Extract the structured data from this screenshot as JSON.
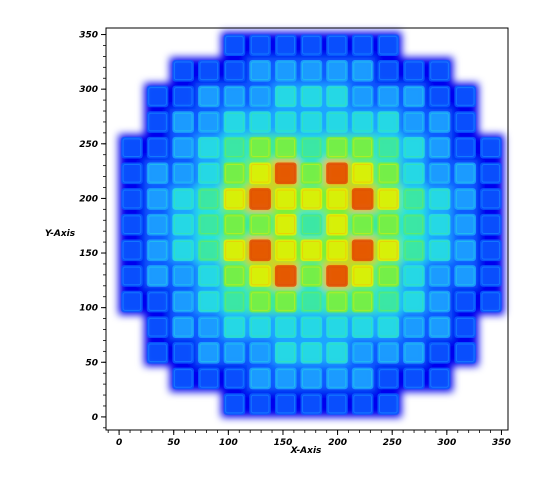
{
  "chart_data": {
    "type": "heatmap",
    "xlabel": "X-Axis",
    "ylabel": "Y-Axis",
    "xlim": [
      -12,
      356
    ],
    "ylim": [
      -12,
      356
    ],
    "xticks": [
      0,
      50,
      100,
      150,
      200,
      250,
      300,
      350
    ],
    "yticks": [
      0,
      50,
      100,
      150,
      200,
      250,
      300,
      350
    ],
    "x_minor_step": 10,
    "y_minor_step": 10,
    "grid": false,
    "colormap": [
      "#0000ee",
      "#0a5cff",
      "#1fa6ff",
      "#27e0e0",
      "#3fe89a",
      "#7ef03a",
      "#e6f000",
      "#ffb000",
      "#e04a00"
    ],
    "core_region_data_units": {
      "x0": 0,
      "x1": 352,
      "y0": 0,
      "y1": 352
    },
    "assembly_grid_size": 15,
    "assembly_levels": [
      [
        0,
        0,
        0,
        0,
        1,
        1,
        1,
        1,
        1,
        1,
        1,
        0,
        0,
        0,
        0
      ],
      [
        0,
        0,
        1,
        1,
        1,
        2,
        2,
        2,
        2,
        2,
        1,
        1,
        1,
        0,
        0
      ],
      [
        0,
        1,
        1,
        2,
        2,
        2,
        3,
        3,
        3,
        2,
        2,
        2,
        1,
        1,
        0
      ],
      [
        0,
        1,
        2,
        2,
        3,
        3,
        3,
        3,
        3,
        3,
        3,
        2,
        2,
        1,
        0
      ],
      [
        1,
        1,
        2,
        3,
        4,
        5,
        5,
        4,
        5,
        5,
        4,
        3,
        2,
        1,
        1
      ],
      [
        1,
        2,
        2,
        3,
        5,
        6,
        8,
        5,
        8,
        6,
        5,
        3,
        2,
        2,
        1
      ],
      [
        1,
        2,
        3,
        4,
        6,
        8,
        6,
        6,
        6,
        8,
        6,
        4,
        3,
        2,
        1
      ],
      [
        1,
        2,
        3,
        4,
        5,
        5,
        6,
        4,
        6,
        5,
        5,
        4,
        3,
        2,
        1
      ],
      [
        1,
        2,
        3,
        4,
        6,
        8,
        6,
        6,
        6,
        8,
        6,
        4,
        3,
        2,
        1
      ],
      [
        1,
        2,
        2,
        3,
        5,
        6,
        8,
        5,
        8,
        6,
        5,
        3,
        2,
        2,
        1
      ],
      [
        1,
        1,
        2,
        3,
        4,
        5,
        5,
        4,
        5,
        5,
        4,
        3,
        2,
        1,
        1
      ],
      [
        0,
        1,
        2,
        2,
        3,
        3,
        3,
        3,
        3,
        3,
        3,
        2,
        2,
        1,
        0
      ],
      [
        0,
        1,
        1,
        2,
        2,
        2,
        3,
        3,
        3,
        2,
        2,
        2,
        1,
        1,
        0
      ],
      [
        0,
        0,
        1,
        1,
        1,
        2,
        2,
        2,
        2,
        2,
        1,
        1,
        1,
        0,
        0
      ],
      [
        0,
        0,
        0,
        0,
        1,
        1,
        1,
        1,
        1,
        1,
        1,
        0,
        0,
        0,
        0
      ]
    ]
  }
}
